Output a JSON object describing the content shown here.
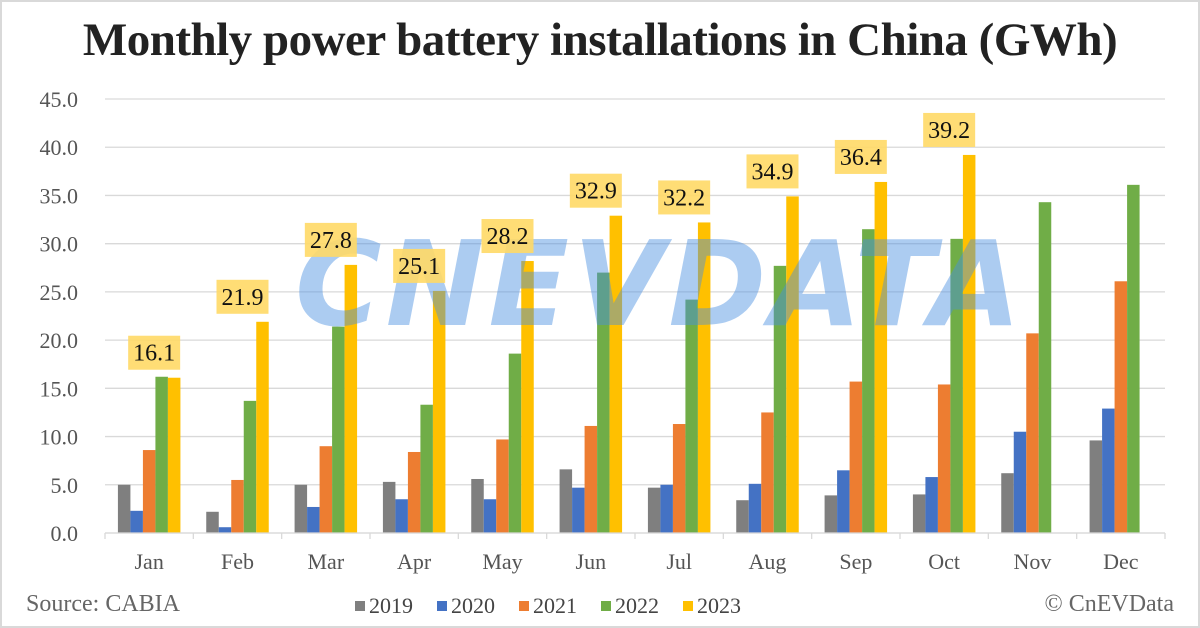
{
  "chart_data": {
    "type": "bar",
    "title": "Monthly power battery installations in China (GWh)",
    "xlabel": "",
    "ylabel": "",
    "ylim": [
      0,
      45
    ],
    "yticks": [
      "0.0",
      "5.0",
      "10.0",
      "15.0",
      "20.0",
      "25.0",
      "30.0",
      "35.0",
      "40.0",
      "45.0"
    ],
    "ytick_values": [
      0,
      5,
      10,
      15,
      20,
      25,
      30,
      35,
      40,
      45
    ],
    "grid": true,
    "legend_position": "bottom",
    "categories": [
      "Jan",
      "Feb",
      "Mar",
      "Apr",
      "May",
      "Jun",
      "Jul",
      "Aug",
      "Sep",
      "Oct",
      "Nov",
      "Dec"
    ],
    "series": [
      {
        "name": "2019",
        "color": "#7f7f7f",
        "values": [
          5.0,
          2.2,
          5.0,
          5.3,
          5.6,
          6.6,
          4.7,
          3.4,
          3.9,
          4.0,
          6.2,
          9.6
        ]
      },
      {
        "name": "2020",
        "color": "#4472c4",
        "values": [
          2.3,
          0.6,
          2.7,
          3.5,
          3.5,
          4.7,
          5.0,
          5.1,
          6.5,
          5.8,
          10.5,
          12.9
        ]
      },
      {
        "name": "2021",
        "color": "#ed7d31",
        "values": [
          8.6,
          5.5,
          9.0,
          8.4,
          9.7,
          11.1,
          11.3,
          12.5,
          15.7,
          15.4,
          20.7,
          26.1
        ]
      },
      {
        "name": "2022",
        "color": "#70ad47",
        "values": [
          16.2,
          13.7,
          21.4,
          13.3,
          18.6,
          27.0,
          24.2,
          27.7,
          31.5,
          30.5,
          34.3,
          36.1
        ]
      },
      {
        "name": "2023",
        "color": "#ffc000",
        "values": [
          16.1,
          21.9,
          27.8,
          25.1,
          28.2,
          32.9,
          32.2,
          34.9,
          36.4,
          39.2,
          null,
          null
        ]
      }
    ],
    "data_labels": {
      "series": "2023",
      "labels": [
        "16.1",
        "21.9",
        "27.8",
        "25.1",
        "28.2",
        "32.9",
        "32.2",
        "34.9",
        "36.4",
        "39.2"
      ],
      "background": "#ffd966"
    }
  },
  "footer": {
    "source": "Source: CABIA",
    "copyright": "© CnEVData"
  },
  "watermark": {
    "text": "CNEVDATA",
    "color": "#4a90e2"
  }
}
